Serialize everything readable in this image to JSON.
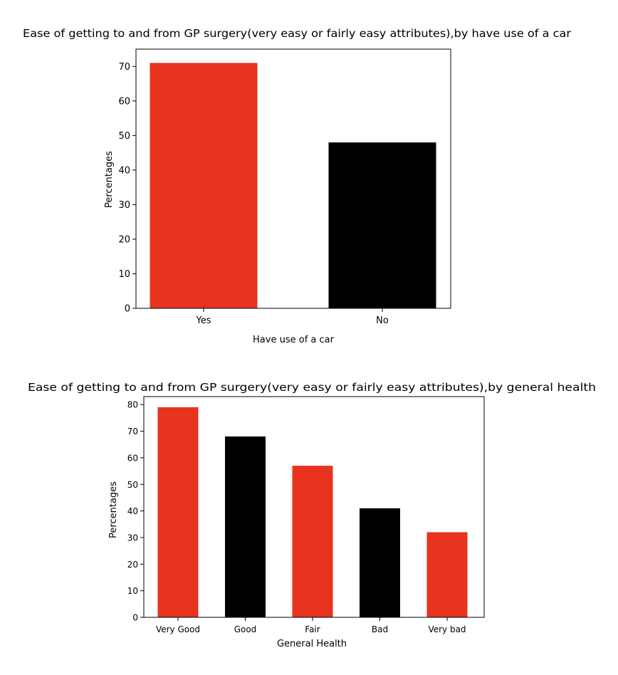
{
  "chart_data": [
    {
      "type": "bar",
      "title": "Ease of getting to and from GP surgery(very easy or fairly easy attributes),by have use of a car",
      "xlabel": "Have use of a car",
      "ylabel": "Percentages",
      "categories": [
        "Yes",
        "No"
      ],
      "values": [
        71,
        48
      ],
      "colors": [
        "#e8331f",
        "#000000"
      ],
      "ylim": [
        0,
        75
      ],
      "yticks": [
        0,
        10,
        20,
        30,
        40,
        50,
        60,
        70
      ],
      "grid": false
    },
    {
      "type": "bar",
      "title": "Ease of getting to and from GP surgery(very easy or fairly easy attributes),by general health",
      "xlabel": "General Health",
      "ylabel": "Percentages",
      "categories": [
        "Very Good",
        "Good",
        "Fair",
        "Bad",
        "Very bad"
      ],
      "values": [
        79,
        68,
        57,
        41,
        32
      ],
      "colors": [
        "#e8331f",
        "#000000",
        "#e8331f",
        "#000000",
        "#e8331f"
      ],
      "ylim": [
        0,
        83
      ],
      "yticks": [
        0,
        10,
        20,
        30,
        40,
        50,
        60,
        70,
        80
      ],
      "grid": false
    }
  ]
}
